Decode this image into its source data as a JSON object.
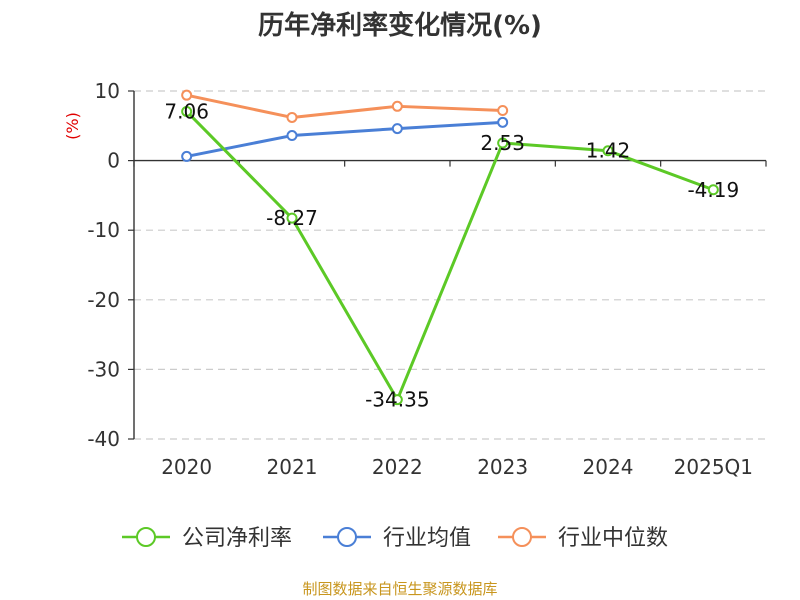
{
  "chart_data": {
    "type": "line",
    "title": "历年净利率变化情况(%)",
    "ylabel": "(%)",
    "categories": [
      "2020",
      "2021",
      "2022",
      "2023",
      "2024",
      "2025Q1"
    ],
    "ylim": [
      -40,
      10
    ],
    "yticks": [
      "10",
      "0",
      "-10",
      "-20",
      "-30",
      "-40"
    ],
    "grid": true,
    "legend_position": "bottom",
    "series": [
      {
        "name": "公司净利率",
        "color": "#5cc926",
        "values": [
          7.06,
          -8.27,
          -34.35,
          2.53,
          1.42,
          -4.19
        ],
        "labels": [
          "7.06",
          "-8.27",
          "-34.35",
          "2.53",
          "1.42",
          "-4.19"
        ]
      },
      {
        "name": "行业均值",
        "color": "#4a7fd6",
        "values": [
          0.6,
          3.6,
          4.6,
          5.5,
          null,
          null
        ]
      },
      {
        "name": "行业中位数",
        "color": "#f5905a",
        "values": [
          9.4,
          6.2,
          7.8,
          7.2,
          null,
          null
        ]
      }
    ]
  },
  "footer": {
    "source": "制图数据来自恒生聚源数据库"
  }
}
